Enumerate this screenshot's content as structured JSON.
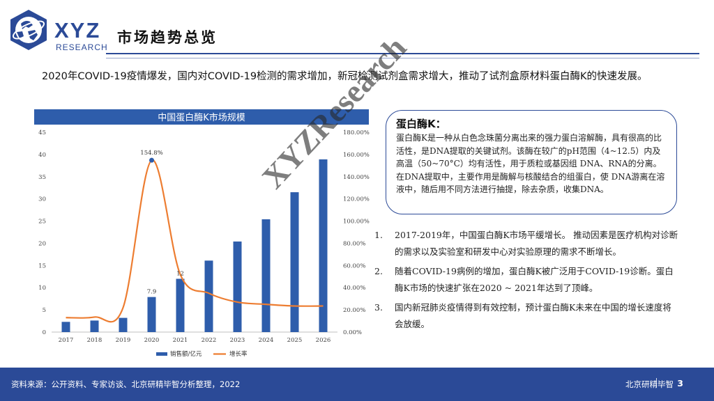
{
  "logo": {
    "text": "XYZ",
    "subtext": "RESEARCH"
  },
  "page_title": "市场趋势总览",
  "intro": "2020年COVID-19疫情爆发，国内对COVID-19检测的需求增加，新冠检测试剂盒需求增大，推动了试剂盒原材料蛋白酶K的快速发展。",
  "colors": {
    "brand": "#2b4a97",
    "bar": "#2e5dab",
    "line": "#ed7d31"
  },
  "callout": {
    "title": "蛋白酶K：",
    "text": "蛋白酶K是一种从白色念珠菌分离出来的强力蛋白溶解酶，具有很高的比活性，是DNA提取的关键试剂。该酶在较广的pH范围（4~12.5）内及高温（50~70°C）均有活性，用于质粒或基因组 DNA、RNA的分离。在DNA提取中，主要作用是酶解与核酸结合的组蛋白，使 DNA游离在溶液中，随后用不同方法进行抽提，除去杂质，收集DNA。"
  },
  "points": [
    {
      "num": "1.",
      "text": "2017-2019年，中国蛋白酶K市场平缓增长。 推动因素是医疗机构对诊断的需求以及实验室和研发中心对实验原理的需求不断增长。"
    },
    {
      "num": "2.",
      "text": "随着COVID-19病例的增加，蛋白酶K被广泛用于COVID-19诊断。蛋白酶K市场的快速扩张在2020 ~ 2021年达到了顶峰。"
    },
    {
      "num": "3.",
      "text": "国内新冠肺炎疫情得到有效控制，预计蛋白酶K未来在中国的增长速度将会放缓。"
    }
  ],
  "watermark": "XYZResearch",
  "footer": {
    "source": "资料来源：公开资料、专家访谈、北京研精毕智分析整理，2022",
    "org": "北京研精毕智",
    "page": "3"
  },
  "chart_data": {
    "type": "bar",
    "title": "中国蛋白酶K市场规模",
    "categories": [
      "2017",
      "2018",
      "2019",
      "2020",
      "2021",
      "2022",
      "2023",
      "2024",
      "2025",
      "2026"
    ],
    "series": [
      {
        "name": "销售额/亿元",
        "type": "bar",
        "axis": "left",
        "values": [
          2.3,
          2.6,
          3.2,
          7.9,
          12,
          16.1,
          20.4,
          25.4,
          31.5,
          38.9
        ],
        "data_labels": {
          "2020": "7.9",
          "2021": "12"
        }
      },
      {
        "name": "增长率",
        "type": "line",
        "axis": "right",
        "values": [
          13.0,
          13.5,
          22.0,
          154.8,
          52.0,
          35.0,
          27.0,
          25.0,
          23.5,
          23.5
        ],
        "data_labels": {
          "2020": "154.8%"
        }
      }
    ],
    "y_left": {
      "min": 0,
      "max": 45,
      "ticks": [
        "0",
        "5",
        "10",
        "15",
        "20",
        "25",
        "30",
        "35",
        "40",
        "45"
      ]
    },
    "y_right": {
      "min": 0,
      "max": 180,
      "ticks": [
        "0.00%",
        "20.00%",
        "40.00%",
        "60.00%",
        "80.00%",
        "100.00%",
        "120.00%",
        "140.00%",
        "160.00%",
        "180.00%"
      ]
    },
    "grid": false,
    "legend": "bottom"
  }
}
